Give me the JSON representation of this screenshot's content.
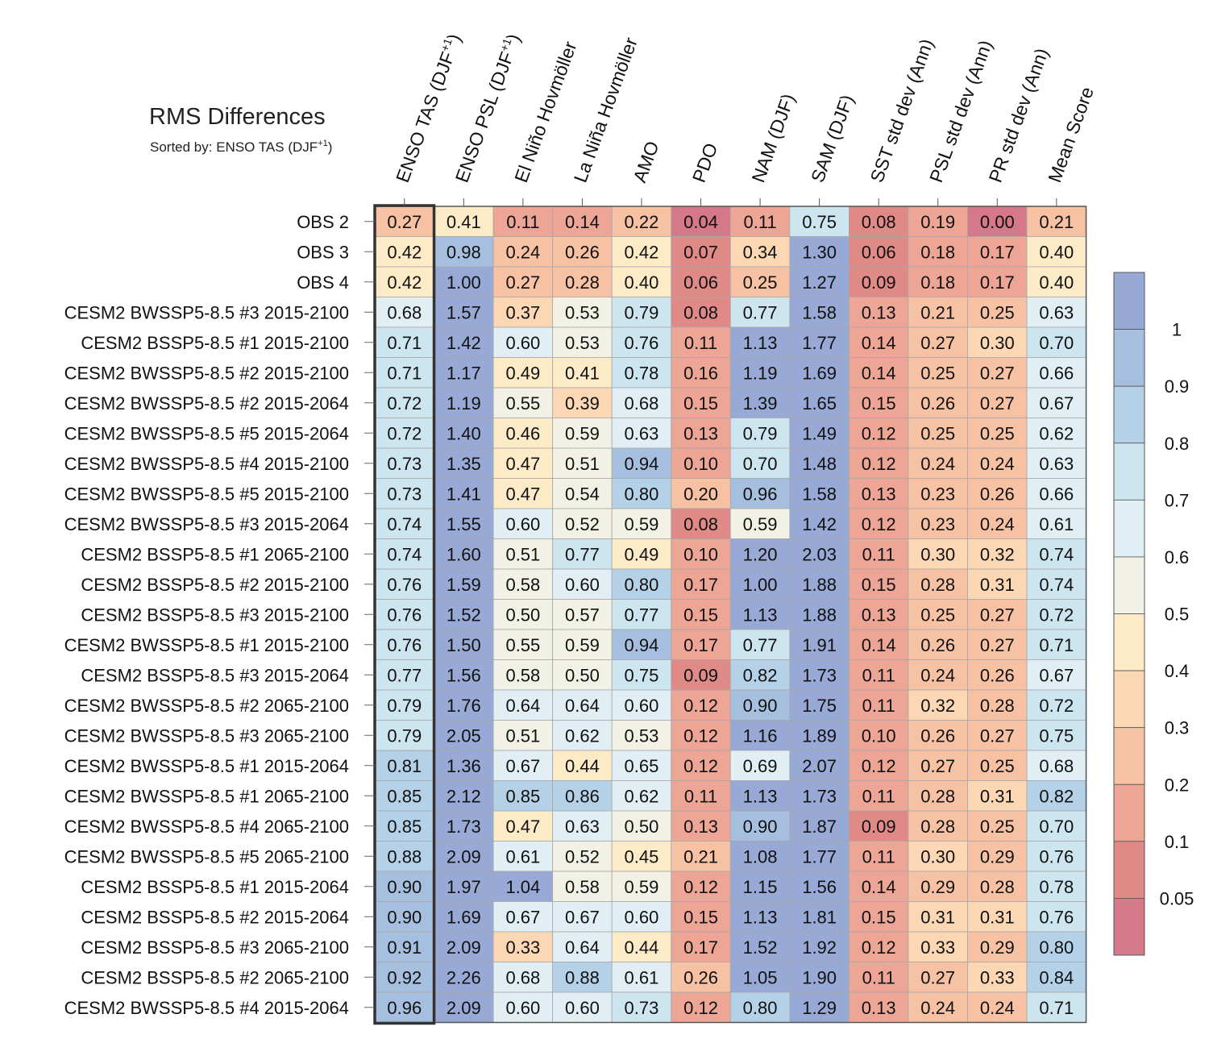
{
  "chart_data": {
    "type": "heatmap",
    "title": "RMS Differences",
    "subtitle_prefix": "Sorted by: ENSO TAS (DJF",
    "subtitle_sup": "+1",
    "subtitle_suffix": ")",
    "columns": [
      {
        "label": "ENSO TAS (DJF",
        "sup": "+1",
        "suffix": ")"
      },
      {
        "label": "ENSO PSL (DJF",
        "sup": "+1",
        "suffix": ")"
      },
      {
        "label": "El Niño Hovmöller"
      },
      {
        "label": "La Niña Hovmöller"
      },
      {
        "label": "AMO"
      },
      {
        "label": "PDO"
      },
      {
        "label": "NAM (DJF)"
      },
      {
        "label": "SAM (DJF)"
      },
      {
        "label": "SST std dev (Ann)"
      },
      {
        "label": "PSL std dev (Ann)"
      },
      {
        "label": "PR std dev (Ann)"
      },
      {
        "label": "Mean Score"
      }
    ],
    "rows": [
      "OBS 2",
      "OBS 3",
      "OBS 4",
      "CESM2 BWSSP5-8.5 #3 2015-2100",
      "CESM2 BSSP5-8.5 #1 2015-2100",
      "CESM2 BWSSP5-8.5 #2 2015-2100",
      "CESM2 BWSSP5-8.5 #2 2015-2064",
      "CESM2 BWSSP5-8.5 #5 2015-2064",
      "CESM2 BWSSP5-8.5 #4 2015-2100",
      "CESM2 BWSSP5-8.5 #5 2015-2100",
      "CESM2 BWSSP5-8.5 #3 2015-2064",
      "CESM2 BSSP5-8.5 #1 2065-2100",
      "CESM2 BSSP5-8.5 #2 2015-2100",
      "CESM2 BSSP5-8.5 #3 2015-2100",
      "CESM2 BWSSP5-8.5 #1 2015-2100",
      "CESM2 BSSP5-8.5 #3 2015-2064",
      "CESM2 BWSSP5-8.5 #2 2065-2100",
      "CESM2 BWSSP5-8.5 #3 2065-2100",
      "CESM2 BWSSP5-8.5 #1 2015-2064",
      "CESM2 BWSSP5-8.5 #1 2065-2100",
      "CESM2 BWSSP5-8.5 #4 2065-2100",
      "CESM2 BWSSP5-8.5 #5 2065-2100",
      "CESM2 BSSP5-8.5 #1 2015-2064",
      "CESM2 BSSP5-8.5 #2 2015-2064",
      "CESM2 BSSP5-8.5 #3 2065-2100",
      "CESM2 BSSP5-8.5 #2 2065-2100",
      "CESM2 BWSSP5-8.5 #4 2015-2064"
    ],
    "values": [
      [
        0.27,
        0.41,
        0.11,
        0.14,
        0.22,
        0.04,
        0.11,
        0.75,
        0.08,
        0.19,
        0.0,
        0.21
      ],
      [
        0.42,
        0.98,
        0.24,
        0.26,
        0.42,
        0.07,
        0.34,
        1.3,
        0.06,
        0.18,
        0.17,
        0.4
      ],
      [
        0.42,
        1.0,
        0.27,
        0.28,
        0.4,
        0.06,
        0.25,
        1.27,
        0.09,
        0.18,
        0.17,
        0.4
      ],
      [
        0.68,
        1.57,
        0.37,
        0.53,
        0.79,
        0.08,
        0.77,
        1.58,
        0.13,
        0.21,
        0.25,
        0.63
      ],
      [
        0.71,
        1.42,
        0.6,
        0.53,
        0.76,
        0.11,
        1.13,
        1.77,
        0.14,
        0.27,
        0.3,
        0.7
      ],
      [
        0.71,
        1.17,
        0.49,
        0.41,
        0.78,
        0.16,
        1.19,
        1.69,
        0.14,
        0.25,
        0.27,
        0.66
      ],
      [
        0.72,
        1.19,
        0.55,
        0.39,
        0.68,
        0.15,
        1.39,
        1.65,
        0.15,
        0.26,
        0.27,
        0.67
      ],
      [
        0.72,
        1.4,
        0.46,
        0.59,
        0.63,
        0.13,
        0.79,
        1.49,
        0.12,
        0.25,
        0.25,
        0.62
      ],
      [
        0.73,
        1.35,
        0.47,
        0.51,
        0.94,
        0.1,
        0.7,
        1.48,
        0.12,
        0.24,
        0.24,
        0.63
      ],
      [
        0.73,
        1.41,
        0.47,
        0.54,
        0.8,
        0.2,
        0.96,
        1.58,
        0.13,
        0.23,
        0.26,
        0.66
      ],
      [
        0.74,
        1.55,
        0.6,
        0.52,
        0.59,
        0.08,
        0.59,
        1.42,
        0.12,
        0.23,
        0.24,
        0.61
      ],
      [
        0.74,
        1.6,
        0.51,
        0.77,
        0.49,
        0.1,
        1.2,
        2.03,
        0.11,
        0.3,
        0.32,
        0.74
      ],
      [
        0.76,
        1.59,
        0.58,
        0.6,
        0.8,
        0.17,
        1.0,
        1.88,
        0.15,
        0.28,
        0.31,
        0.74
      ],
      [
        0.76,
        1.52,
        0.5,
        0.57,
        0.77,
        0.15,
        1.13,
        1.88,
        0.13,
        0.25,
        0.27,
        0.72
      ],
      [
        0.76,
        1.5,
        0.55,
        0.59,
        0.94,
        0.17,
        0.77,
        1.91,
        0.14,
        0.26,
        0.27,
        0.71
      ],
      [
        0.77,
        1.56,
        0.58,
        0.5,
        0.75,
        0.09,
        0.82,
        1.73,
        0.11,
        0.24,
        0.26,
        0.67
      ],
      [
        0.79,
        1.76,
        0.64,
        0.64,
        0.6,
        0.12,
        0.9,
        1.75,
        0.11,
        0.32,
        0.28,
        0.72
      ],
      [
        0.79,
        2.05,
        0.51,
        0.62,
        0.53,
        0.12,
        1.16,
        1.89,
        0.1,
        0.26,
        0.27,
        0.75
      ],
      [
        0.81,
        1.36,
        0.67,
        0.44,
        0.65,
        0.12,
        0.69,
        2.07,
        0.12,
        0.27,
        0.25,
        0.68
      ],
      [
        0.85,
        2.12,
        0.85,
        0.86,
        0.62,
        0.11,
        1.13,
        1.73,
        0.11,
        0.28,
        0.31,
        0.82
      ],
      [
        0.85,
        1.73,
        0.47,
        0.63,
        0.5,
        0.13,
        0.9,
        1.87,
        0.09,
        0.28,
        0.25,
        0.7
      ],
      [
        0.88,
        2.09,
        0.61,
        0.52,
        0.45,
        0.21,
        1.08,
        1.77,
        0.11,
        0.3,
        0.29,
        0.76
      ],
      [
        0.9,
        1.97,
        1.04,
        0.58,
        0.59,
        0.12,
        1.15,
        1.56,
        0.14,
        0.29,
        0.28,
        0.78
      ],
      [
        0.9,
        1.69,
        0.67,
        0.67,
        0.6,
        0.15,
        1.13,
        1.81,
        0.15,
        0.31,
        0.31,
        0.76
      ],
      [
        0.91,
        2.09,
        0.33,
        0.64,
        0.44,
        0.17,
        1.52,
        1.92,
        0.12,
        0.33,
        0.29,
        0.8
      ],
      [
        0.92,
        2.26,
        0.68,
        0.88,
        0.61,
        0.26,
        1.05,
        1.9,
        0.11,
        0.27,
        0.33,
        0.84
      ],
      [
        0.96,
        2.09,
        0.6,
        0.6,
        0.73,
        0.12,
        0.8,
        1.29,
        0.13,
        0.24,
        0.24,
        0.71
      ]
    ],
    "sorted_column": 0,
    "colorbar": {
      "thresholds": [
        0.05,
        0.1,
        0.2,
        0.3,
        0.4,
        0.5,
        0.6,
        0.7,
        0.8,
        0.9,
        1
      ],
      "tick_labels": [
        "1",
        "0.9",
        "0.8",
        "0.7",
        "0.6",
        "0.5",
        "0.4",
        "0.3",
        "0.2",
        "0.1",
        "0.05"
      ],
      "colors": [
        "#d4788a",
        "#e08a88",
        "#eda596",
        "#f7c2a4",
        "#fbd7b4",
        "#fdebc8",
        "#f2f1e6",
        "#e1eef4",
        "#cde5ef",
        "#b5d1e7",
        "#a7bfdf",
        "#98a9d6"
      ]
    }
  }
}
